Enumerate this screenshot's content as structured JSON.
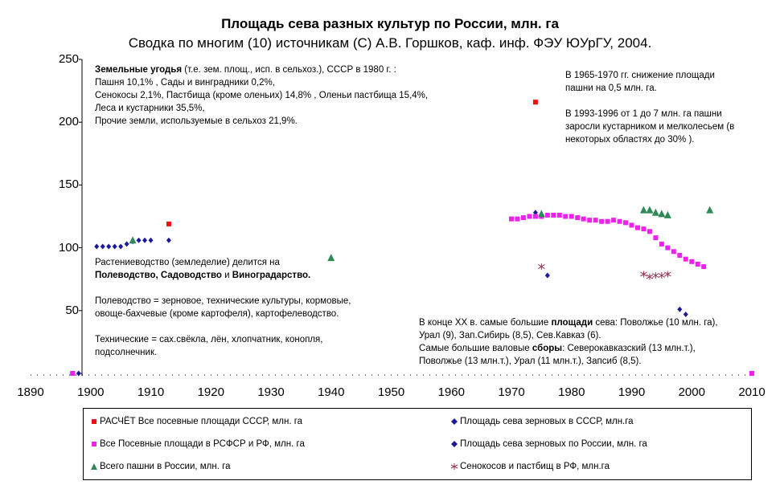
{
  "colors": {
    "red": "#ee1111",
    "magenta": "#ee22ee",
    "blue": "#1a1a9a",
    "green": "#2e8b57",
    "purple": "#993355"
  },
  "chart_data": {
    "type": "scatter",
    "title": "Площадь сева разных культур по России, млн. га",
    "subtitle": "Сводка по многим (10) источникам (С) А.В. Горшков, каф. инф. ФЭУ ЮУрГУ, 2004.",
    "xlim": [
      1890,
      2010
    ],
    "ylim": [
      0,
      250
    ],
    "x_ticks": [
      "1890",
      "1900",
      "1910",
      "1920",
      "1930",
      "1940",
      "1950",
      "1960",
      "1970",
      "1980",
      "1990",
      "2000",
      "2010"
    ],
    "y_ticks": [
      "0",
      "50",
      "100",
      "150",
      "200",
      "250"
    ],
    "grid": false,
    "legend_position": "bottom",
    "series": [
      {
        "name": "РАСЧЁТ Все посевные площади СССР, млн. га",
        "marker": "square",
        "color": "#ee1111",
        "points": [
          [
            1897,
            0
          ],
          [
            1913,
            119
          ],
          [
            1974,
            216
          ]
        ]
      },
      {
        "name": "Площадь сева зерновых в СССР, млн.га",
        "marker": "diamond",
        "color": "#1a1a9a",
        "points": [
          [
            1974,
            128
          ],
          [
            1976,
            78
          ]
        ]
      },
      {
        "name": "Все Посевные площади в РСФСР и РФ, млн. га",
        "marker": "square",
        "color": "#ee22ee",
        "points": [
          [
            1897,
            0
          ],
          [
            1970,
            123
          ],
          [
            1971,
            123
          ],
          [
            1972,
            124
          ],
          [
            1973,
            125
          ],
          [
            1974,
            125
          ],
          [
            1975,
            125
          ],
          [
            1976,
            126
          ],
          [
            1977,
            126
          ],
          [
            1978,
            126
          ],
          [
            1979,
            125
          ],
          [
            1980,
            125
          ],
          [
            1981,
            124
          ],
          [
            1982,
            123
          ],
          [
            1983,
            122
          ],
          [
            1984,
            122
          ],
          [
            1985,
            121
          ],
          [
            1986,
            121
          ],
          [
            1987,
            122
          ],
          [
            1988,
            121
          ],
          [
            1989,
            120
          ],
          [
            1990,
            118
          ],
          [
            1991,
            116
          ],
          [
            1992,
            115
          ],
          [
            1993,
            113
          ],
          [
            1994,
            108
          ],
          [
            1995,
            103
          ],
          [
            1996,
            100
          ],
          [
            1997,
            97
          ],
          [
            1998,
            94
          ],
          [
            1999,
            91
          ],
          [
            2000,
            89
          ],
          [
            2001,
            87
          ],
          [
            2002,
            85
          ],
          [
            2010,
            0
          ]
        ]
      },
      {
        "name": "Площадь сева зерновых по России, млн. га",
        "marker": "diamond",
        "color": "#1a1a9a",
        "points": [
          [
            1898,
            0
          ],
          [
            1901,
            101
          ],
          [
            1902,
            101
          ],
          [
            1903,
            101
          ],
          [
            1904,
            101
          ],
          [
            1905,
            101
          ],
          [
            1906,
            103
          ],
          [
            1907,
            105
          ],
          [
            1908,
            106
          ],
          [
            1909,
            106
          ],
          [
            1910,
            106
          ],
          [
            1913,
            106
          ],
          [
            1998,
            51
          ],
          [
            1999,
            47
          ]
        ]
      },
      {
        "name": "Всего пашни в России, млн. га",
        "marker": "triangle",
        "color": "#2e8b57",
        "points": [
          [
            1907,
            106
          ],
          [
            1940,
            92
          ],
          [
            1975,
            127
          ],
          [
            1992,
            130
          ],
          [
            1993,
            130
          ],
          [
            1994,
            128
          ],
          [
            1995,
            127
          ],
          [
            1996,
            126
          ],
          [
            2003,
            130
          ]
        ]
      },
      {
        "name": "Сенокосов и пастбищ в РФ, млн.га",
        "marker": "star",
        "color": "#993355",
        "points": [
          [
            1975,
            85
          ],
          [
            1992,
            79
          ],
          [
            1993,
            77
          ],
          [
            1994,
            78
          ],
          [
            1995,
            78
          ],
          [
            1996,
            79
          ]
        ]
      }
    ]
  },
  "notes": {
    "land": {
      "line1_bold": "Земельные угодья",
      "line1_rest": " (т.е. зем. площ., исп. в сельхоз.), СССР в 1980 г. :",
      "line2": "Пашня 10,1% , Сады и винградники 0,2%,",
      "line3": "Сенокосы 2,1%, Пастбища (кроме оленьих) 14,8% , Оленьи пастбища 15,4%,",
      "line4": "Леса и кустарники 35,5%,",
      "line5": "Прочие земли, используемые в сельхоз 21,9%."
    },
    "decline": {
      "line1": "В 1965-1970 гг. снижение площади",
      "line2": "пашни на 0,5 млн. га.",
      "line3": "В 1993-1996 от 1 до 7 млн. га пашни",
      "line4": "заросли кустарником и мелколесьем (в",
      "line5": "некоторых областях до 30% )."
    },
    "crops": {
      "line1": "Растениеводство (земледелие) делится на",
      "line2_b1": "Полеводство, Садоводство",
      "line2_mid": " и ",
      "line2_b2": "Виноградарство.",
      "line3": "Полеводство = зерновое, технические культуры, кормовые,",
      "line4": "овоще-бахчевые (кроме картофеля), картофелеводство.",
      "line5": "Технические = сах.свёкла, лён, хлопчатник, конопля,",
      "line6": "подсолнечник."
    },
    "regions": {
      "line1_a": "В конце ХХ в. самые большие ",
      "line1_b": "площади",
      "line1_c": " сева: Поволжье (10 млн. га),",
      "line2": "Урал (9), Зап.Сибирь (8,5), Сев.Кавказ (6).",
      "line3_a": "Самые большие валовые ",
      "line3_b": "сборы",
      "line3_c": ": Северокавказский (13 млн.т.),",
      "line4": "Поволжье (13 млн.т.), Урал (11 млн.т.), Запсиб (8,5)."
    }
  }
}
